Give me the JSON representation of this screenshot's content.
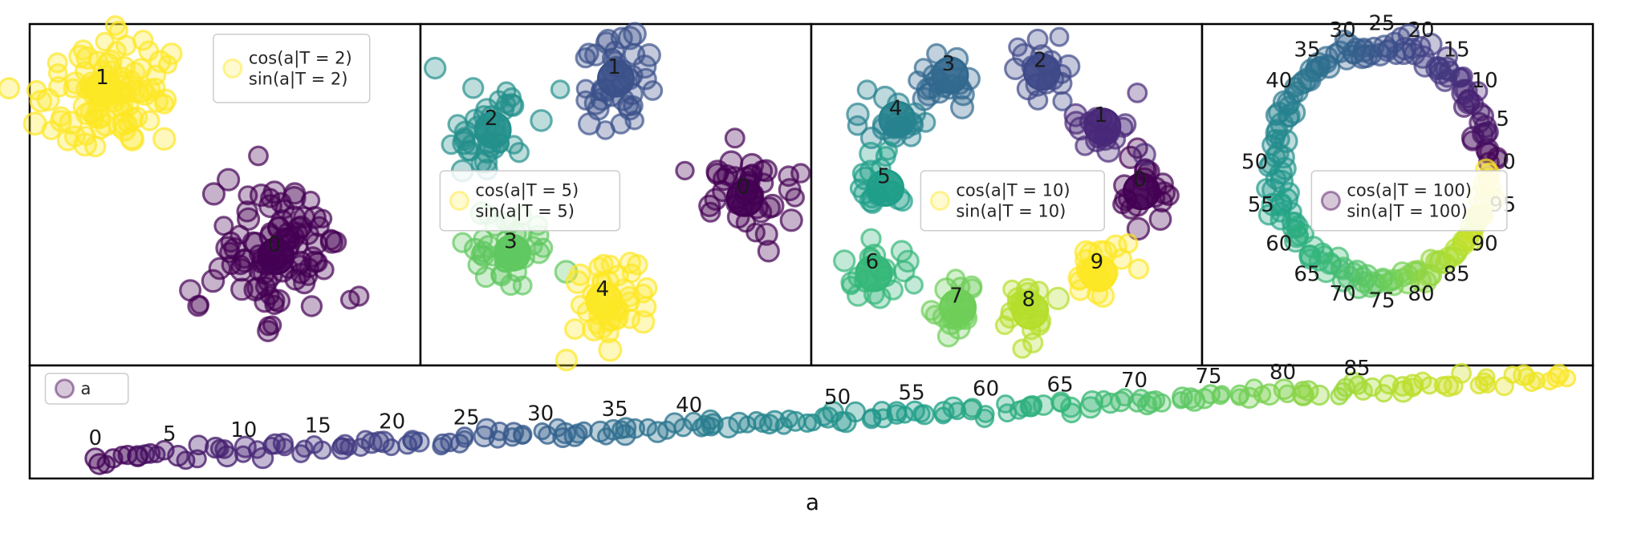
{
  "figure": {
    "xlabel": "a",
    "background": "#ffffff",
    "border_color": "#000000"
  },
  "colors": {
    "viridis": [
      "#440154",
      "#482878",
      "#3e4989",
      "#31688e",
      "#26828e",
      "#1f9e89",
      "#35b779",
      "#6ece58",
      "#b5de2b",
      "#fde725"
    ],
    "text": "#1a1a1a",
    "legend_border": "#cccccc"
  },
  "chart_data": [
    {
      "id": "embedding-T2",
      "type": "scatter",
      "period": 2,
      "n_points": 100,
      "legend": {
        "lines": [
          "cos(a|T = 2)",
          "sin(a|T = 2)"
        ],
        "marker_color": "#fde725",
        "box": [
          0.47,
          0.03,
          0.4,
          0.2
        ]
      },
      "clusters": [
        {
          "label": "0",
          "x": 0.63,
          "y": 0.68,
          "spread": [
            0.085,
            0.095
          ]
        },
        {
          "label": "1",
          "x": 0.19,
          "y": 0.19,
          "spread": [
            0.085,
            0.09
          ]
        }
      ]
    },
    {
      "id": "embedding-T5",
      "type": "scatter",
      "period": 5,
      "n_points": 100,
      "legend": {
        "lines": [
          "cos(a|T = 5)",
          "sin(a|T = 5)"
        ],
        "marker_color": "#fde725",
        "box": [
          0.05,
          0.43,
          0.46,
          0.175
        ]
      },
      "clusters": [
        {
          "label": "0",
          "x": 0.83,
          "y": 0.51,
          "spread": [
            0.057,
            0.065
          ]
        },
        {
          "label": "1",
          "x": 0.5,
          "y": 0.16,
          "spread": [
            0.055,
            0.065
          ]
        },
        {
          "label": "2",
          "x": 0.185,
          "y": 0.31,
          "spread": [
            0.055,
            0.06
          ]
        },
        {
          "label": "3",
          "x": 0.235,
          "y": 0.67,
          "spread": [
            0.055,
            0.06
          ]
        },
        {
          "label": "4",
          "x": 0.47,
          "y": 0.81,
          "spread": [
            0.05,
            0.065
          ]
        }
      ]
    },
    {
      "id": "embedding-T10",
      "type": "scatter",
      "period": 10,
      "n_points": 100,
      "legend": {
        "lines": [
          "cos(a|T = 10)",
          "sin(a|T = 10)"
        ],
        "marker_color": "#fde725",
        "box": [
          0.28,
          0.43,
          0.47,
          0.175
        ]
      },
      "clusters": [
        {
          "label": "0",
          "x": 0.845,
          "y": 0.49,
          "spread": [
            0.042,
            0.048
          ]
        },
        {
          "label": "1",
          "x": 0.745,
          "y": 0.3,
          "spread": [
            0.042,
            0.048
          ]
        },
        {
          "label": "2",
          "x": 0.59,
          "y": 0.14,
          "spread": [
            0.042,
            0.048
          ]
        },
        {
          "label": "3",
          "x": 0.355,
          "y": 0.15,
          "spread": [
            0.042,
            0.048
          ]
        },
        {
          "label": "4",
          "x": 0.22,
          "y": 0.28,
          "spread": [
            0.042,
            0.048
          ]
        },
        {
          "label": "5",
          "x": 0.19,
          "y": 0.48,
          "spread": [
            0.042,
            0.048
          ]
        },
        {
          "label": "6",
          "x": 0.16,
          "y": 0.73,
          "spread": [
            0.042,
            0.048
          ]
        },
        {
          "label": "7",
          "x": 0.375,
          "y": 0.83,
          "spread": [
            0.042,
            0.048
          ]
        },
        {
          "label": "8",
          "x": 0.56,
          "y": 0.84,
          "spread": [
            0.042,
            0.048
          ]
        },
        {
          "label": "9",
          "x": 0.735,
          "y": 0.73,
          "spread": [
            0.042,
            0.048
          ]
        }
      ]
    },
    {
      "id": "embedding-T100",
      "type": "scatter",
      "period": 100,
      "n_points": 100,
      "legend": {
        "lines": [
          "cos(a|T = 100)",
          "sin(a|T = 100)"
        ],
        "marker_color": "#440154",
        "box": [
          0.28,
          0.43,
          0.5,
          0.175
        ]
      },
      "ring": {
        "cx": 0.46,
        "cy": 0.41,
        "rx": 0.272,
        "ry": 0.345
      },
      "ring_labels": [
        0,
        5,
        10,
        15,
        20,
        25,
        30,
        35,
        40,
        50,
        55,
        60,
        65,
        70,
        75,
        80,
        85,
        90,
        95
      ]
    },
    {
      "id": "a-values",
      "type": "scatter",
      "n_points": 100,
      "legend": {
        "lines": [
          "a"
        ],
        "marker_color": "#440154",
        "box": [
          0.01,
          0.07,
          0.053,
          0.27
        ]
      },
      "line": {
        "x0": 0.042,
        "y0": 0.83,
        "x1": 0.982,
        "y1": 0.11
      },
      "point_labels": [
        0,
        5,
        10,
        15,
        20,
        25,
        30,
        35,
        40,
        50,
        55,
        60,
        65,
        70,
        75,
        80,
        85
      ]
    }
  ]
}
